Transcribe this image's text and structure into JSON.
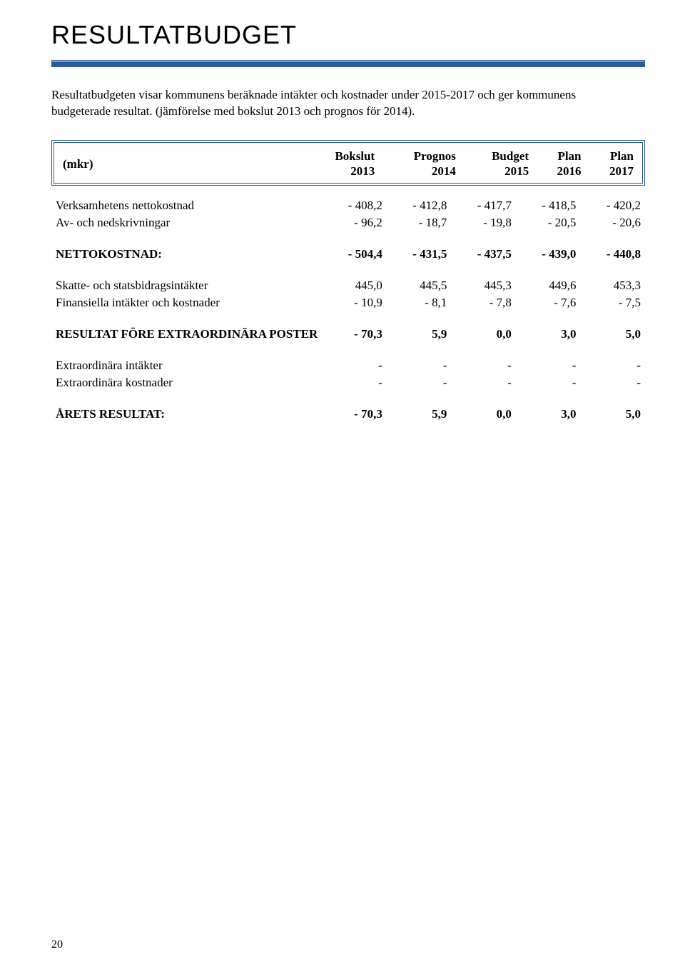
{
  "title": "RESULTATBUDGET",
  "intro": "Resultatbudgeten visar kommunens beräknade intäkter och kostnader under 2015-2017 och ger kommunens budgeterade resultat. (jämförelse med bokslut 2013 och prognos för 2014).",
  "header": {
    "label": "(mkr)",
    "cols": [
      {
        "top": "Bokslut",
        "bot": "2013"
      },
      {
        "top": "Prognos",
        "bot": "2014"
      },
      {
        "top": "Budget",
        "bot": "2015"
      },
      {
        "top": "Plan",
        "bot": "2016"
      },
      {
        "top": "Plan",
        "bot": "2017"
      }
    ]
  },
  "rows": [
    {
      "type": "data",
      "label": "Verksamhetens nettokostnad",
      "cells": [
        "- 408,2",
        "- 412,8",
        "- 417,7",
        "- 418,5",
        "- 420,2"
      ]
    },
    {
      "type": "data",
      "label": "Av- och nedskrivningar",
      "cells": [
        "-  96,2",
        "-  18,7",
        "-  19,8",
        "-  20,5",
        "-  20,6"
      ]
    },
    {
      "type": "spacer"
    },
    {
      "type": "bold",
      "label": "NETTOKOSTNAD:",
      "cells": [
        "- 504,4",
        "- 431,5",
        "- 437,5",
        "- 439,0",
        "- 440,8"
      ]
    },
    {
      "type": "spacer"
    },
    {
      "type": "data",
      "label": "Skatte- och statsbidragsintäkter",
      "cells": [
        "445,0",
        "445,5",
        "445,3",
        "449,6",
        "453,3"
      ]
    },
    {
      "type": "data",
      "label": "Finansiella intäkter och kostnader",
      "cells": [
        "-  10,9",
        "-   8,1",
        "-   7,8",
        "-   7,6",
        "-   7,5"
      ]
    },
    {
      "type": "spacer"
    },
    {
      "type": "bold",
      "label": "RESULTAT FÖRE EXTRAORDINÄRA POSTER",
      "cells": [
        "-  70,3",
        "5,9",
        "0,0",
        "3,0",
        "5,0"
      ]
    },
    {
      "type": "spacer"
    },
    {
      "type": "data",
      "label": "Extraordinära intäkter",
      "cells": [
        "-",
        "-",
        "-",
        "-",
        "-"
      ]
    },
    {
      "type": "data",
      "label": "Extraordinära kostnader",
      "cells": [
        "-",
        "-",
        "-",
        "-",
        "-"
      ]
    },
    {
      "type": "spacer"
    },
    {
      "type": "bold",
      "label": "ÅRETS RESULTAT:",
      "cells": [
        "-  70,3",
        "5,9",
        "0,0",
        "3,0",
        "5,0"
      ]
    }
  ],
  "colors": {
    "rule": "#2b5b9b",
    "text": "#000000",
    "bg": "#ffffff"
  },
  "pageNumber": "20"
}
